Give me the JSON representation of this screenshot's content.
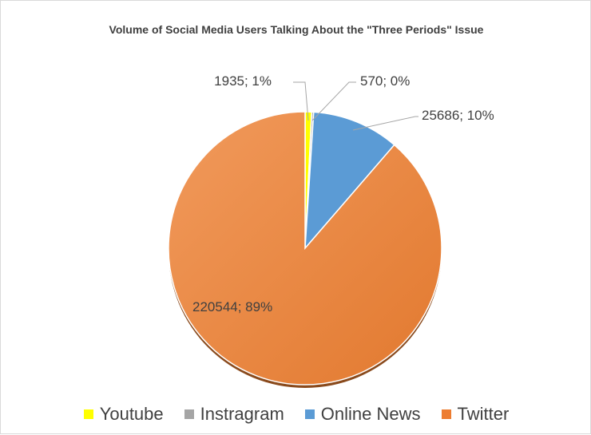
{
  "chart_data": {
    "type": "pie",
    "title": "Volume of Social Media Users Talking About the \"Three Periods\" Issue",
    "slices": [
      {
        "name": "Youtube",
        "value": 1935,
        "percent_label": "1%",
        "color": "#ffff00"
      },
      {
        "name": "Instragram",
        "value": 570,
        "percent_label": "0%",
        "color": "#a5a5a5"
      },
      {
        "name": "Online News",
        "value": 25686,
        "percent_label": "10%",
        "color": "#5b9bd5"
      },
      {
        "name": "Twitter",
        "value": 220544,
        "percent_label": "89%",
        "color": "#ed7d31"
      }
    ],
    "data_labels": [
      "1935; 1%",
      "570; 0%",
      "25686; 10%",
      "220544; 89%"
    ],
    "legend_position": "bottom"
  }
}
